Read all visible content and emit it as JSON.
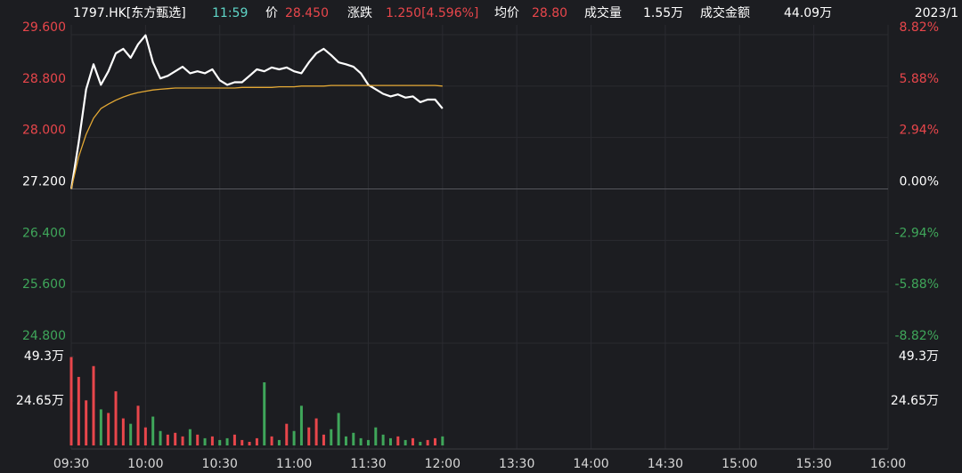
{
  "header": {
    "symbol": "1797.HK[东方甄选]",
    "time": "11:59",
    "price_label": "价",
    "price": "28.450",
    "change_label": "涨跌",
    "change": "1.250[4.596%]",
    "avg_label": "均价",
    "avg": "28.80",
    "volume_label": "成交量",
    "volume": "1.55万",
    "turnover_label": "成交金额",
    "turnover": "44.09万",
    "date": "2023/1"
  },
  "chart_data": [
    {
      "type": "line",
      "x": [
        0,
        3,
        6,
        9,
        12,
        15,
        18,
        21,
        24,
        27,
        30,
        33,
        36,
        39,
        42,
        45,
        48,
        51,
        54,
        57,
        60,
        63,
        66,
        69,
        72,
        75,
        78,
        81,
        84,
        87,
        90,
        93,
        96,
        99,
        102,
        105,
        108,
        111,
        114,
        117,
        120,
        123,
        126,
        129,
        132,
        135,
        138,
        141,
        144,
        147,
        150
      ],
      "series": [
        {
          "color": "#ffffff",
          "values": [
            27.2,
            27.92,
            28.75,
            29.14,
            28.82,
            29.03,
            29.31,
            29.38,
            29.24,
            29.45,
            29.59,
            29.17,
            28.92,
            28.96,
            29.03,
            29.1,
            29.0,
            29.03,
            29.0,
            29.06,
            28.89,
            28.82,
            28.86,
            28.86,
            28.96,
            29.06,
            29.03,
            29.09,
            29.06,
            29.09,
            29.03,
            29.0,
            29.17,
            29.31,
            29.38,
            29.28,
            29.17,
            29.14,
            29.1,
            29.0,
            28.82,
            28.75,
            28.68,
            28.64,
            28.67,
            28.62,
            28.64,
            28.55,
            28.59,
            28.59,
            28.45
          ]
        },
        {
          "color": "#e3a834",
          "values": [
            27.2,
            27.7,
            28.05,
            28.3,
            28.45,
            28.52,
            28.58,
            28.63,
            28.67,
            28.7,
            28.72,
            28.74,
            28.75,
            28.76,
            28.77,
            28.77,
            28.77,
            28.77,
            28.77,
            28.77,
            28.77,
            28.77,
            28.77,
            28.78,
            28.78,
            28.78,
            28.78,
            28.78,
            28.79,
            28.79,
            28.79,
            28.8,
            28.8,
            28.8,
            28.8,
            28.81,
            28.81,
            28.81,
            28.81,
            28.81,
            28.81,
            28.81,
            28.81,
            28.81,
            28.81,
            28.81,
            28.81,
            28.81,
            28.81,
            28.81,
            28.8
          ]
        }
      ],
      "xlim": [
        0,
        330
      ],
      "ylim": [
        24.8,
        29.6
      ],
      "yticks": [
        {
          "value": 29.6,
          "label": "29.600"
        },
        {
          "value": 28.8,
          "label": "28.800"
        },
        {
          "value": 28.0,
          "label": "28.000"
        },
        {
          "value": 27.2,
          "label": "27.200"
        },
        {
          "value": 26.4,
          "label": "26.400"
        },
        {
          "value": 25.6,
          "label": "25.600"
        },
        {
          "value": 24.8,
          "label": "24.800"
        }
      ],
      "y2lim": [
        -8.82,
        8.82
      ],
      "y2ticks": [
        {
          "value": 8.82,
          "label": "8.82%"
        },
        {
          "value": 5.88,
          "label": "5.88%"
        },
        {
          "value": 2.94,
          "label": "2.94%"
        },
        {
          "value": 0,
          "label": "0.00%"
        },
        {
          "value": -2.94,
          "label": "-2.94%"
        },
        {
          "value": -5.88,
          "label": "-5.88%"
        },
        {
          "value": -8.82,
          "label": "-8.82%"
        }
      ],
      "up_color": "#e8464b",
      "down_color": "#3fa65a",
      "flat_color": "#ffffff"
    },
    {
      "type": "bar",
      "x": [
        0,
        3,
        6,
        9,
        12,
        15,
        18,
        21,
        24,
        27,
        30,
        33,
        36,
        39,
        42,
        45,
        48,
        51,
        54,
        57,
        60,
        63,
        66,
        69,
        72,
        75,
        78,
        81,
        84,
        87,
        90,
        93,
        96,
        99,
        102,
        105,
        108,
        111,
        114,
        117,
        120,
        123,
        126,
        129,
        132,
        135,
        138,
        141,
        144,
        147,
        150
      ],
      "values": [
        49,
        38,
        25,
        44,
        20,
        18,
        30,
        15,
        12,
        22,
        10,
        16,
        8,
        6,
        7,
        5,
        9,
        6,
        4,
        5,
        3,
        4,
        6,
        3,
        2,
        4,
        35,
        5,
        3,
        12,
        8,
        22,
        10,
        15,
        6,
        9,
        18,
        5,
        7,
        4,
        3,
        10,
        6,
        4,
        5,
        3,
        4,
        2,
        3,
        4,
        5
      ],
      "xlim": [
        0,
        330
      ],
      "ylim": [
        0,
        49.3
      ],
      "yticks": [
        {
          "value": 49.3,
          "label": "49.3万"
        },
        {
          "value": 24.65,
          "label": "24.65万"
        }
      ],
      "xticks": [
        {
          "value": 0,
          "label": "09:30"
        },
        {
          "value": 30,
          "label": "10:00"
        },
        {
          "value": 60,
          "label": "10:30"
        },
        {
          "value": 90,
          "label": "11:00"
        },
        {
          "value": 120,
          "label": "11:30"
        },
        {
          "value": 150,
          "label": "12:00"
        },
        {
          "value": 180,
          "label": "13:30"
        },
        {
          "value": 210,
          "label": "14:00"
        },
        {
          "value": 240,
          "label": "14:30"
        },
        {
          "value": 270,
          "label": "15:00"
        },
        {
          "value": 300,
          "label": "15:30"
        },
        {
          "value": 330,
          "label": "16:00"
        }
      ],
      "up_color": "#e8464b",
      "down_color": "#3fa65a"
    }
  ]
}
